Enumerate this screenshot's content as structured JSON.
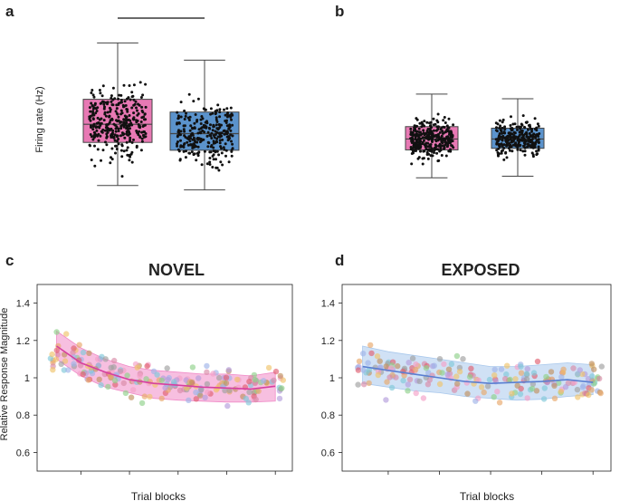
{
  "chart_data": [
    {
      "panel": "a",
      "type": "box",
      "title": "",
      "ylabel": "Firing rate (Hz)",
      "ylim": [
        40,
        360
      ],
      "yticks": [
        50,
        100,
        150,
        200,
        250,
        300,
        350
      ],
      "categories": [
        "NOVEL",
        "EXPOSED"
      ],
      "boxes": [
        {
          "category": "NOVEL",
          "color": "#e879b4",
          "whisker_low": 52,
          "q1": 140,
          "median": 177,
          "q3": 228,
          "whisker_high": 343,
          "n_points": 330,
          "seed": 11
        },
        {
          "category": "EXPOSED",
          "color": "#5b93cc",
          "whisker_low": 43,
          "q1": 124,
          "median": 158,
          "q3": 202,
          "whisker_high": 308,
          "n_points": 280,
          "seed": 23
        }
      ],
      "significance": {
        "label": "***",
        "between": [
          "NOVEL",
          "EXPOSED"
        ]
      }
    },
    {
      "panel": "b",
      "type": "box",
      "title": "",
      "ylabel": "",
      "ylim": [
        15,
        105
      ],
      "yticks": [
        20,
        40,
        60,
        80,
        100
      ],
      "categories": [
        "NOVEL",
        "EXPOSED"
      ],
      "boxes": [
        {
          "category": "NOVEL",
          "color": "#e879b4",
          "whisker_low": 21,
          "q1": 39,
          "median": 46,
          "q3": 54,
          "whisker_high": 75,
          "n_points": 330,
          "seed": 37
        },
        {
          "category": "EXPOSED",
          "color": "#5b93cc",
          "whisker_low": 22,
          "q1": 40,
          "median": 46,
          "q3": 53,
          "whisker_high": 72,
          "n_points": 280,
          "seed": 41
        }
      ]
    },
    {
      "panel": "c",
      "type": "scatter-line",
      "title": "NOVEL",
      "xlabel": "Trial blocks",
      "ylabel": "Relative Response Magnitude",
      "xlim": [
        0.2,
        10.7
      ],
      "ylim": [
        0.5,
        1.5
      ],
      "xticks": [
        2,
        4,
        6,
        8,
        10
      ],
      "yticks": [
        0.6,
        0.8,
        1.0,
        1.2,
        1.4
      ],
      "line_color": "#d63fa0",
      "band_color": "#f08ac7",
      "mean_x": [
        1,
        2,
        3,
        4,
        5,
        6,
        7,
        8,
        9,
        10
      ],
      "mean_y": [
        1.17,
        1.08,
        1.03,
        0.99,
        0.97,
        0.96,
        0.95,
        0.945,
        0.94,
        0.955
      ],
      "band_low": [
        1.1,
        1.01,
        0.95,
        0.92,
        0.89,
        0.88,
        0.875,
        0.87,
        0.87,
        0.875
      ],
      "band_high": [
        1.25,
        1.16,
        1.1,
        1.06,
        1.04,
        1.03,
        1.02,
        1.02,
        1.01,
        1.03
      ],
      "point_seed": 71
    },
    {
      "panel": "d",
      "type": "scatter-line",
      "title": "EXPOSED",
      "xlabel": "Trial blocks",
      "ylabel": "",
      "xlim": [
        0.2,
        10.7
      ],
      "ylim": [
        0.5,
        1.5
      ],
      "xticks": [
        2,
        4,
        6,
        8,
        10
      ],
      "yticks": [
        0.6,
        0.8,
        1.0,
        1.2,
        1.4
      ],
      "line_color": "#5a7fd1",
      "band_color": "#a9c8ec",
      "mean_x": [
        1,
        2,
        3,
        4,
        5,
        6,
        7,
        8,
        9,
        10
      ],
      "mean_y": [
        1.06,
        1.04,
        1.02,
        1.0,
        0.98,
        0.97,
        0.975,
        0.98,
        0.99,
        0.975
      ],
      "band_low": [
        0.97,
        0.95,
        0.93,
        0.92,
        0.9,
        0.89,
        0.88,
        0.885,
        0.9,
        0.91
      ],
      "band_high": [
        1.17,
        1.14,
        1.12,
        1.1,
        1.08,
        1.06,
        1.06,
        1.07,
        1.08,
        1.07
      ],
      "point_seed": 97
    }
  ],
  "panel_letters": [
    "a",
    "b",
    "c",
    "d"
  ],
  "point_palette": [
    "#f4a0c8",
    "#9fb4e8",
    "#e8a86a",
    "#e06070",
    "#8fd18a",
    "#b39ddb",
    "#f0c36a",
    "#7fc8d8",
    "#d98aa8",
    "#a0a0a0",
    "#c09060"
  ]
}
